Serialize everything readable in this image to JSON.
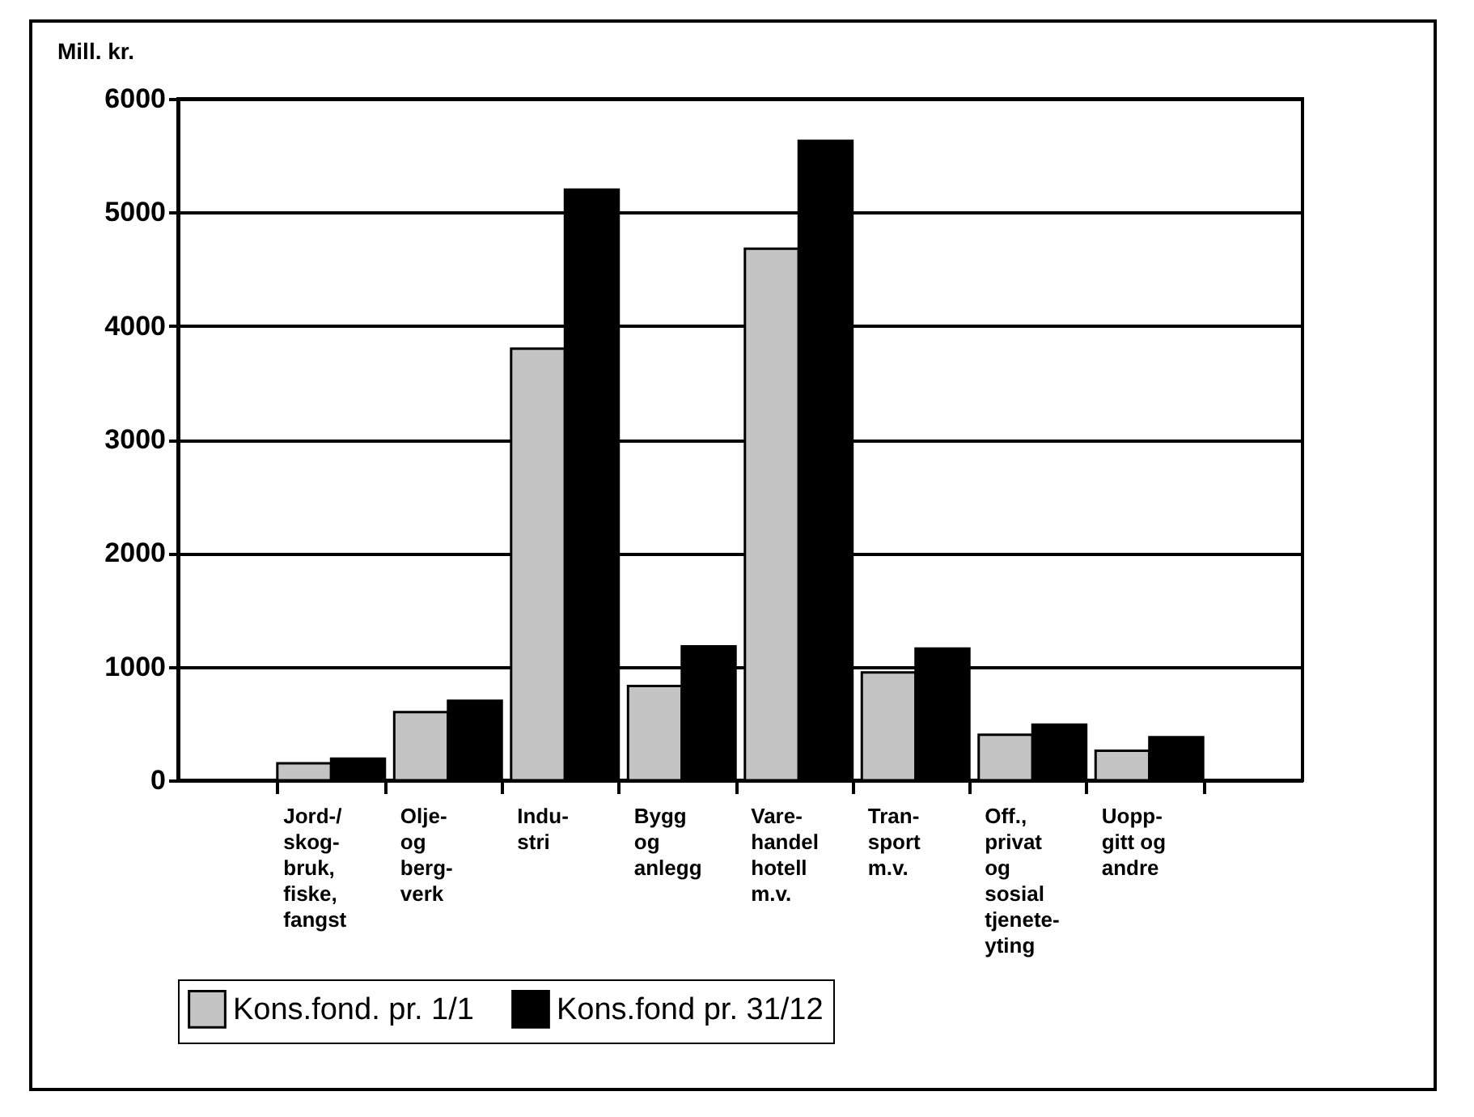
{
  "chart_data": {
    "type": "bar",
    "ylabel": "Mill. kr.",
    "categories": [
      "Jord-/\nskog-\nbruk,\nfiske,\nfangst",
      "Olje-\nog\nberg-\nverk",
      "Indu-\nstri",
      "Bygg\nog\nanlegg",
      "Vare-\nhandel\nhotell\nm.v.",
      "Tran-\nsport\nm.v.",
      "Off.,\nprivat\nog\nsosial\ntjenete-\nyting",
      "Uopp-\ngitt og\nandre"
    ],
    "series": [
      {
        "name": "Kons.fond. pr. 1/1",
        "color": "#c4c4c4",
        "values": [
          150,
          600,
          3800,
          830,
          4680,
          950,
          400,
          260
        ]
      },
      {
        "name": "Kons.fond pr. 31/12",
        "color": "#000000",
        "values": [
          190,
          700,
          5200,
          1180,
          5630,
          1160,
          490,
          380
        ]
      }
    ],
    "ylim": [
      0,
      6000
    ],
    "yticks": [
      0,
      1000,
      2000,
      3000,
      4000,
      5000,
      6000
    ],
    "grid": "y",
    "legend": "bottom"
  }
}
